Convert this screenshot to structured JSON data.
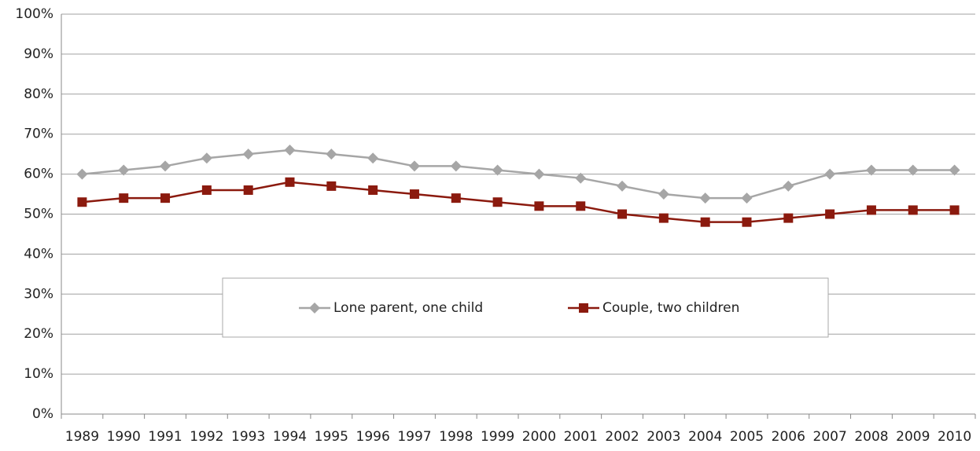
{
  "chart_data": {
    "type": "line",
    "categories": [
      "1989",
      "1990",
      "1991",
      "1992",
      "1993",
      "1994",
      "1995",
      "1996",
      "1997",
      "1998",
      "1999",
      "2000",
      "2001",
      "2002",
      "2003",
      "2004",
      "2005",
      "2006",
      "2007",
      "2008",
      "2009",
      "2010"
    ],
    "series": [
      {
        "name": "Lone parent, one child",
        "color": "#a6a6a6",
        "marker": "diamond",
        "values": [
          60,
          61,
          62,
          64,
          65,
          66,
          65,
          64,
          62,
          62,
          61,
          60,
          59,
          57,
          55,
          54,
          54,
          57,
          60,
          61,
          61,
          61
        ]
      },
      {
        "name": "Couple, two children",
        "color": "#8b1a0e",
        "marker": "square",
        "values": [
          53,
          54,
          54,
          56,
          56,
          58,
          57,
          56,
          55,
          54,
          53,
          52,
          52,
          50,
          49,
          48,
          48,
          49,
          50,
          51,
          51,
          51
        ]
      }
    ],
    "ylim": [
      0,
      100
    ],
    "yticks": [
      {
        "value": 0,
        "label": "0%"
      },
      {
        "value": 10,
        "label": "10%"
      },
      {
        "value": 20,
        "label": "20%"
      },
      {
        "value": 30,
        "label": "30%"
      },
      {
        "value": 40,
        "label": "40%"
      },
      {
        "value": 50,
        "label": "50%"
      },
      {
        "value": 60,
        "label": "60%"
      },
      {
        "value": 70,
        "label": "70%"
      },
      {
        "value": 80,
        "label": "80%"
      },
      {
        "value": 90,
        "label": "90%"
      },
      {
        "value": 100,
        "label": "100%"
      }
    ],
    "grid": true,
    "legend": "center"
  }
}
